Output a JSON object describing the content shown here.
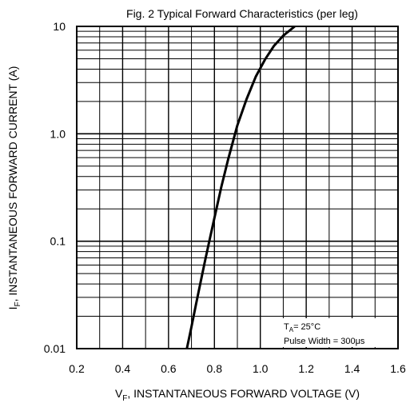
{
  "chart_data": {
    "type": "line",
    "title": "Fig. 2 Typical Forward Characteristics (per leg)",
    "xlabel": {
      "main": "V",
      "sub": "F",
      "rest": ", INSTANTANEOUS FORWARD VOLTAGE (V)"
    },
    "ylabel": {
      "main": "I",
      "sub": "F",
      "rest": ", INSTANTANEOUS FORWARD CURRENT (A)"
    },
    "x_scale": "linear",
    "y_scale": "log",
    "xlim": [
      0.2,
      1.6
    ],
    "ylim": [
      0.01,
      10
    ],
    "x_ticks": [
      "0.2",
      "0.4",
      "0.6",
      "0.8",
      "1.0",
      "1.2",
      "1.4",
      "1.6"
    ],
    "y_ticks": [
      "0.01",
      "0.1",
      "1.0",
      "10"
    ],
    "grid": true,
    "series": [
      {
        "x": [
          0.68,
          0.7,
          0.72,
          0.74,
          0.76,
          0.78,
          0.8,
          0.83,
          0.86,
          0.9,
          0.94,
          0.98,
          1.02,
          1.06,
          1.1,
          1.15
        ],
        "y": [
          0.01,
          0.016,
          0.026,
          0.042,
          0.067,
          0.105,
          0.165,
          0.32,
          0.58,
          1.2,
          2.1,
          3.4,
          4.9,
          6.6,
          8.2,
          10
        ]
      }
    ],
    "annotations": {
      "temp": {
        "main": "T",
        "sub": "A",
        "rest": "= 25°C"
      },
      "pulse": "Pulse Width = 300μs"
    }
  }
}
